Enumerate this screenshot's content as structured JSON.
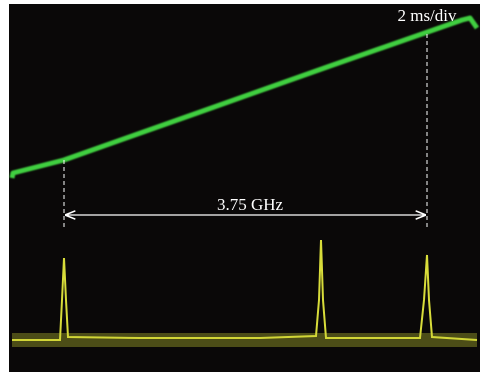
{
  "labels": {
    "time_scale": "2 ms/div",
    "frequency_span": "3.75 GHz"
  }
}
